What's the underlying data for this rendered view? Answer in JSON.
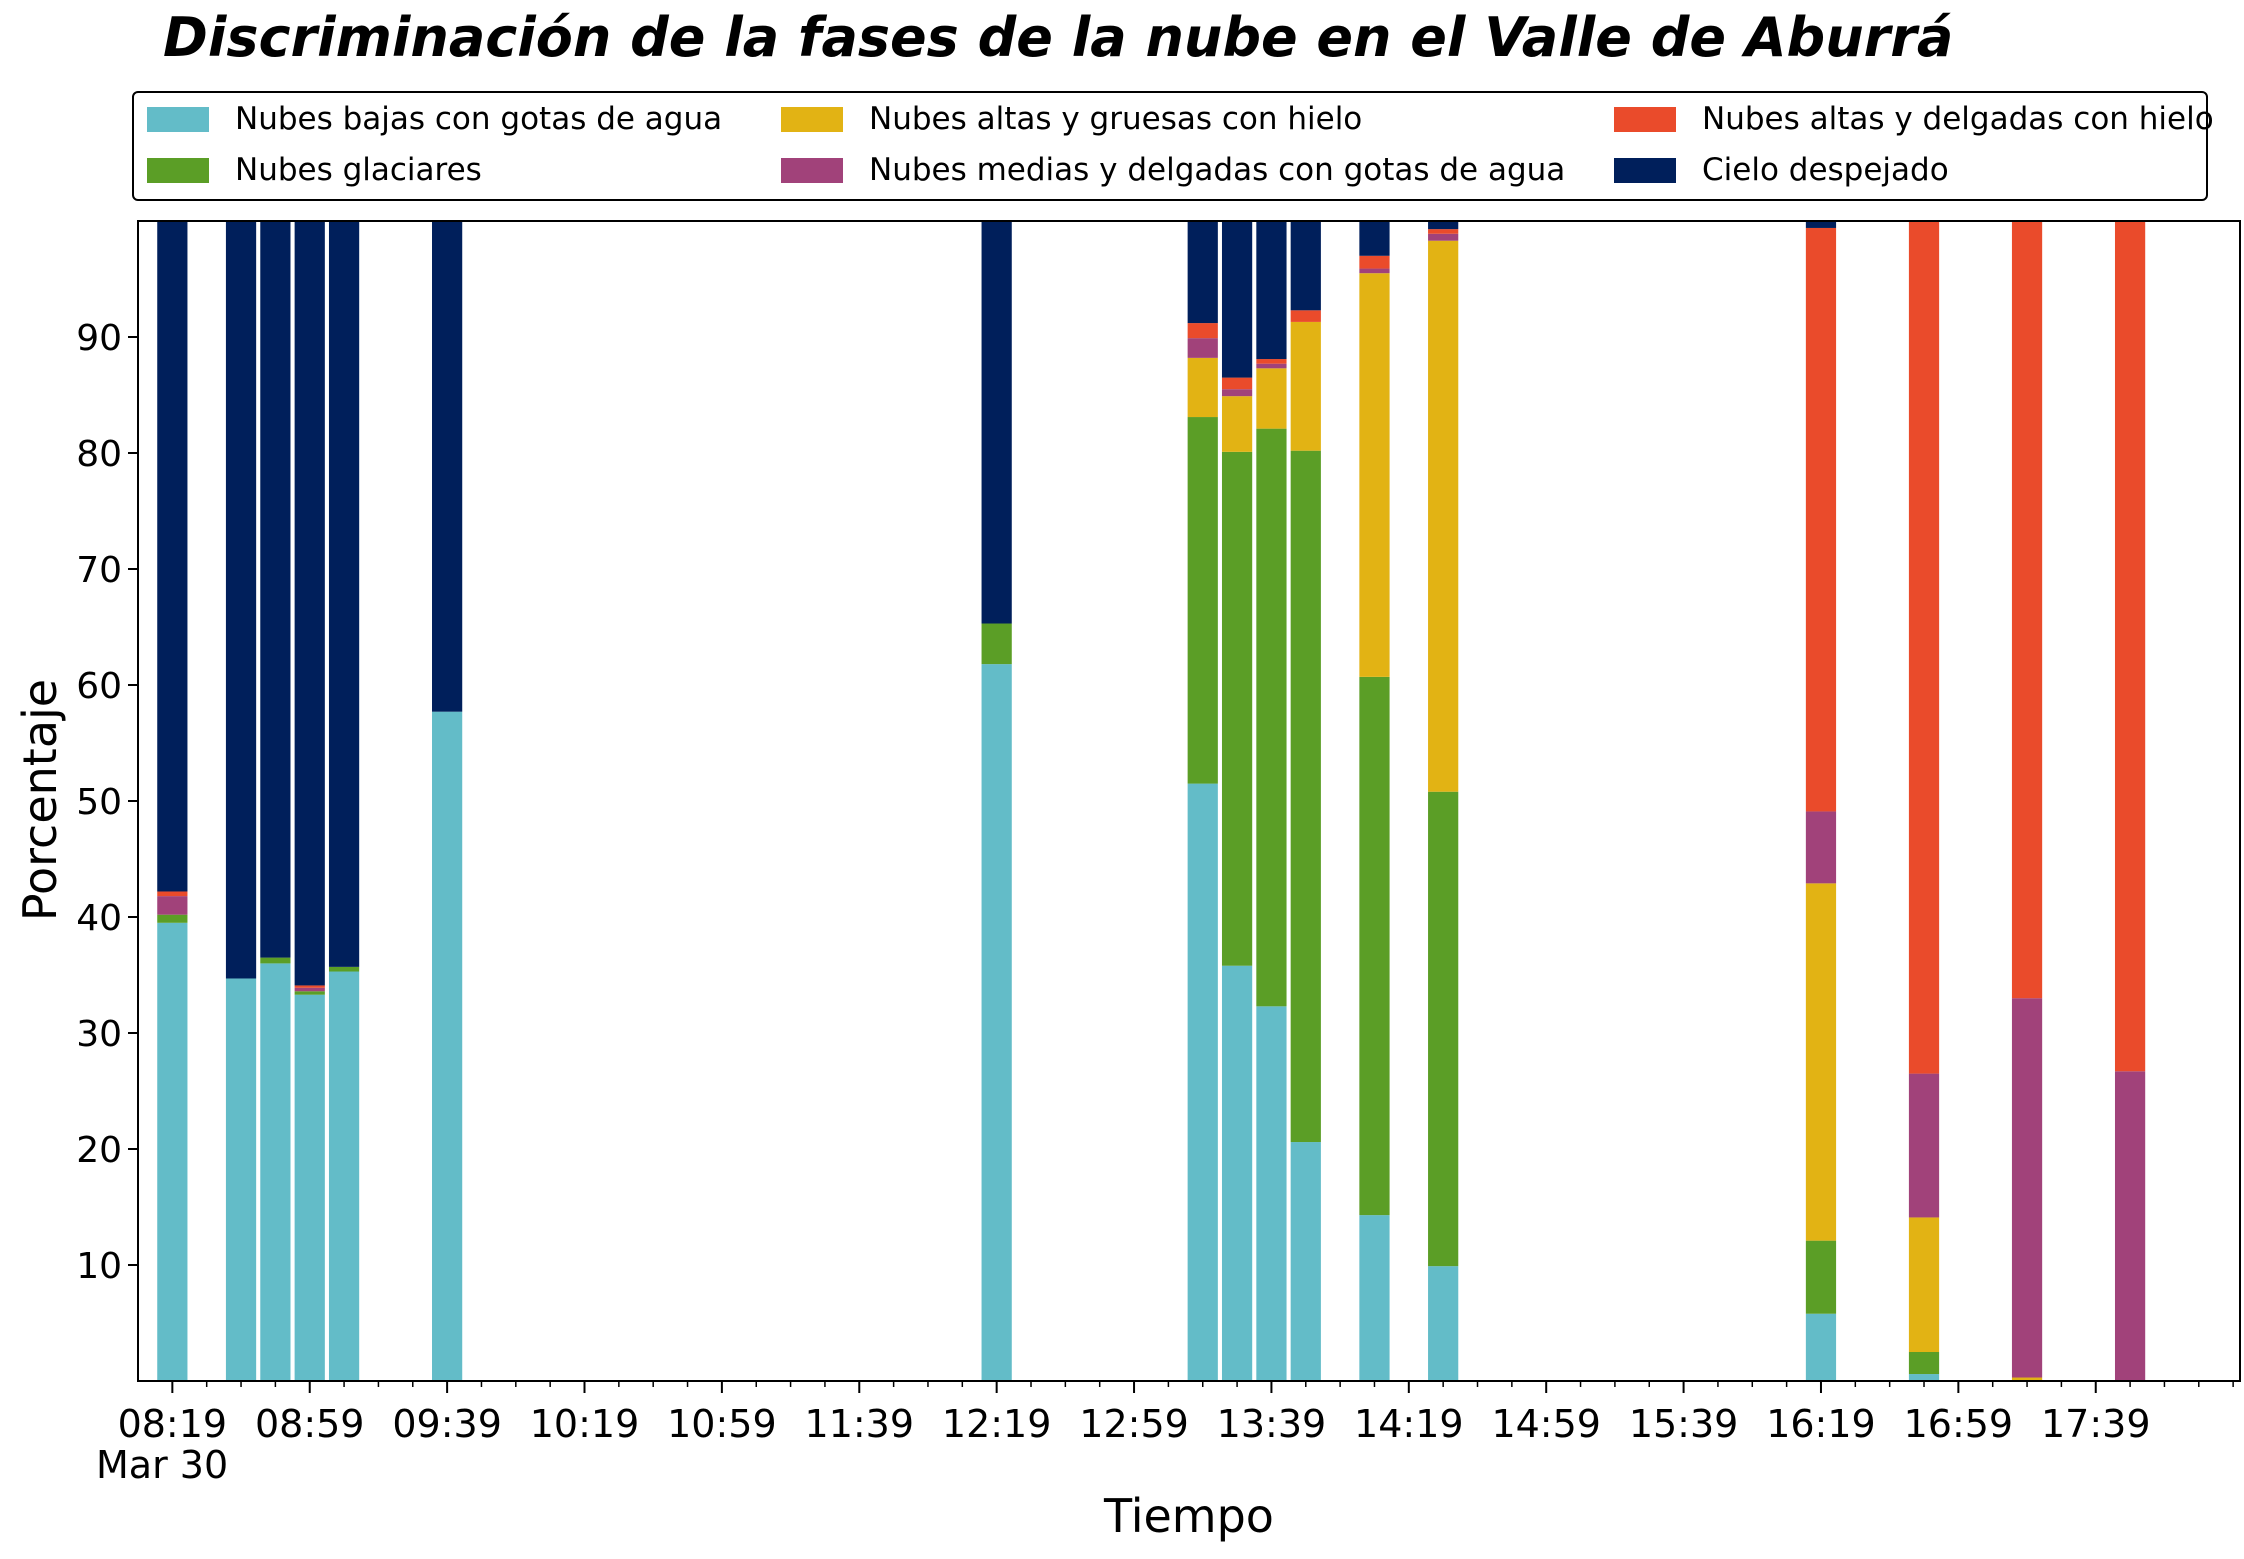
{
  "chart_data": {
    "type": "bar",
    "stacked": true,
    "title": "Discriminación de la fases de la nube en el Valle de Aburrá",
    "xlabel": "Tiempo",
    "ylabel": "Porcentaje",
    "date_label": "Mar 30",
    "ylim": [
      0,
      100
    ],
    "yticks": [
      10,
      20,
      30,
      40,
      50,
      60,
      70,
      80,
      90
    ],
    "xlim": [
      "08:09",
      "18:21"
    ],
    "xticks": [
      "08:19",
      "08:59",
      "09:39",
      "10:19",
      "10:59",
      "11:39",
      "12:19",
      "12:59",
      "13:39",
      "14:19",
      "14:59",
      "15:39",
      "16:19",
      "16:59",
      "17:39"
    ],
    "legend_position": "top",
    "categories": [
      "08:19",
      "08:39",
      "08:49",
      "08:59",
      "09:09",
      "09:39",
      "12:19",
      "13:19",
      "13:29",
      "13:39",
      "13:49",
      "14:09",
      "14:29",
      "16:19",
      "16:49",
      "17:19",
      "17:49"
    ],
    "series": [
      {
        "name": "Nubes bajas con gotas de agua",
        "color": "#63bcc8",
        "values": [
          39.5,
          34.7,
          36.0,
          33.3,
          35.3,
          57.7,
          61.8,
          51.5,
          35.8,
          32.3,
          20.6,
          14.3,
          9.9,
          5.8,
          0.6,
          0.0,
          0.0
        ]
      },
      {
        "name": "Nubes glaciares",
        "color": "#5b9e26",
        "values": [
          0.7,
          0.0,
          0.5,
          0.3,
          0.4,
          0.0,
          3.5,
          31.6,
          44.3,
          49.8,
          59.6,
          46.4,
          40.9,
          6.3,
          1.9,
          0.0,
          0.0
        ]
      },
      {
        "name": "Nubes altas y gruesas con hielo",
        "color": "#e2b314",
        "values": [
          0.0,
          0.0,
          0.0,
          0.0,
          0.0,
          0.0,
          0.0,
          5.1,
          4.8,
          5.2,
          11.1,
          34.8,
          47.5,
          30.8,
          11.6,
          0.3,
          0.0
        ]
      },
      {
        "name": "Nubes medias y delgadas con gotas de agua",
        "color": "#a1427a",
        "values": [
          1.6,
          0.0,
          0.0,
          0.3,
          0.0,
          0.0,
          0.0,
          1.7,
          0.6,
          0.4,
          0.0,
          0.4,
          0.6,
          6.2,
          12.4,
          32.7,
          26.7
        ]
      },
      {
        "name": "Nubes altas y delgadas con hielo",
        "color": "#ea4b2b",
        "values": [
          0.4,
          0.0,
          0.0,
          0.2,
          0.0,
          0.0,
          0.0,
          1.3,
          1.0,
          0.4,
          1.0,
          1.1,
          0.4,
          50.3,
          73.5,
          67.0,
          73.3
        ]
      },
      {
        "name": "Cielo despejado",
        "color": "#001f5b",
        "values": [
          57.8,
          65.3,
          63.5,
          65.9,
          64.3,
          42.3,
          34.7,
          8.8,
          13.5,
          11.9,
          7.7,
          3.0,
          0.7,
          0.6,
          0.0,
          0.0,
          0.0
        ]
      }
    ]
  }
}
